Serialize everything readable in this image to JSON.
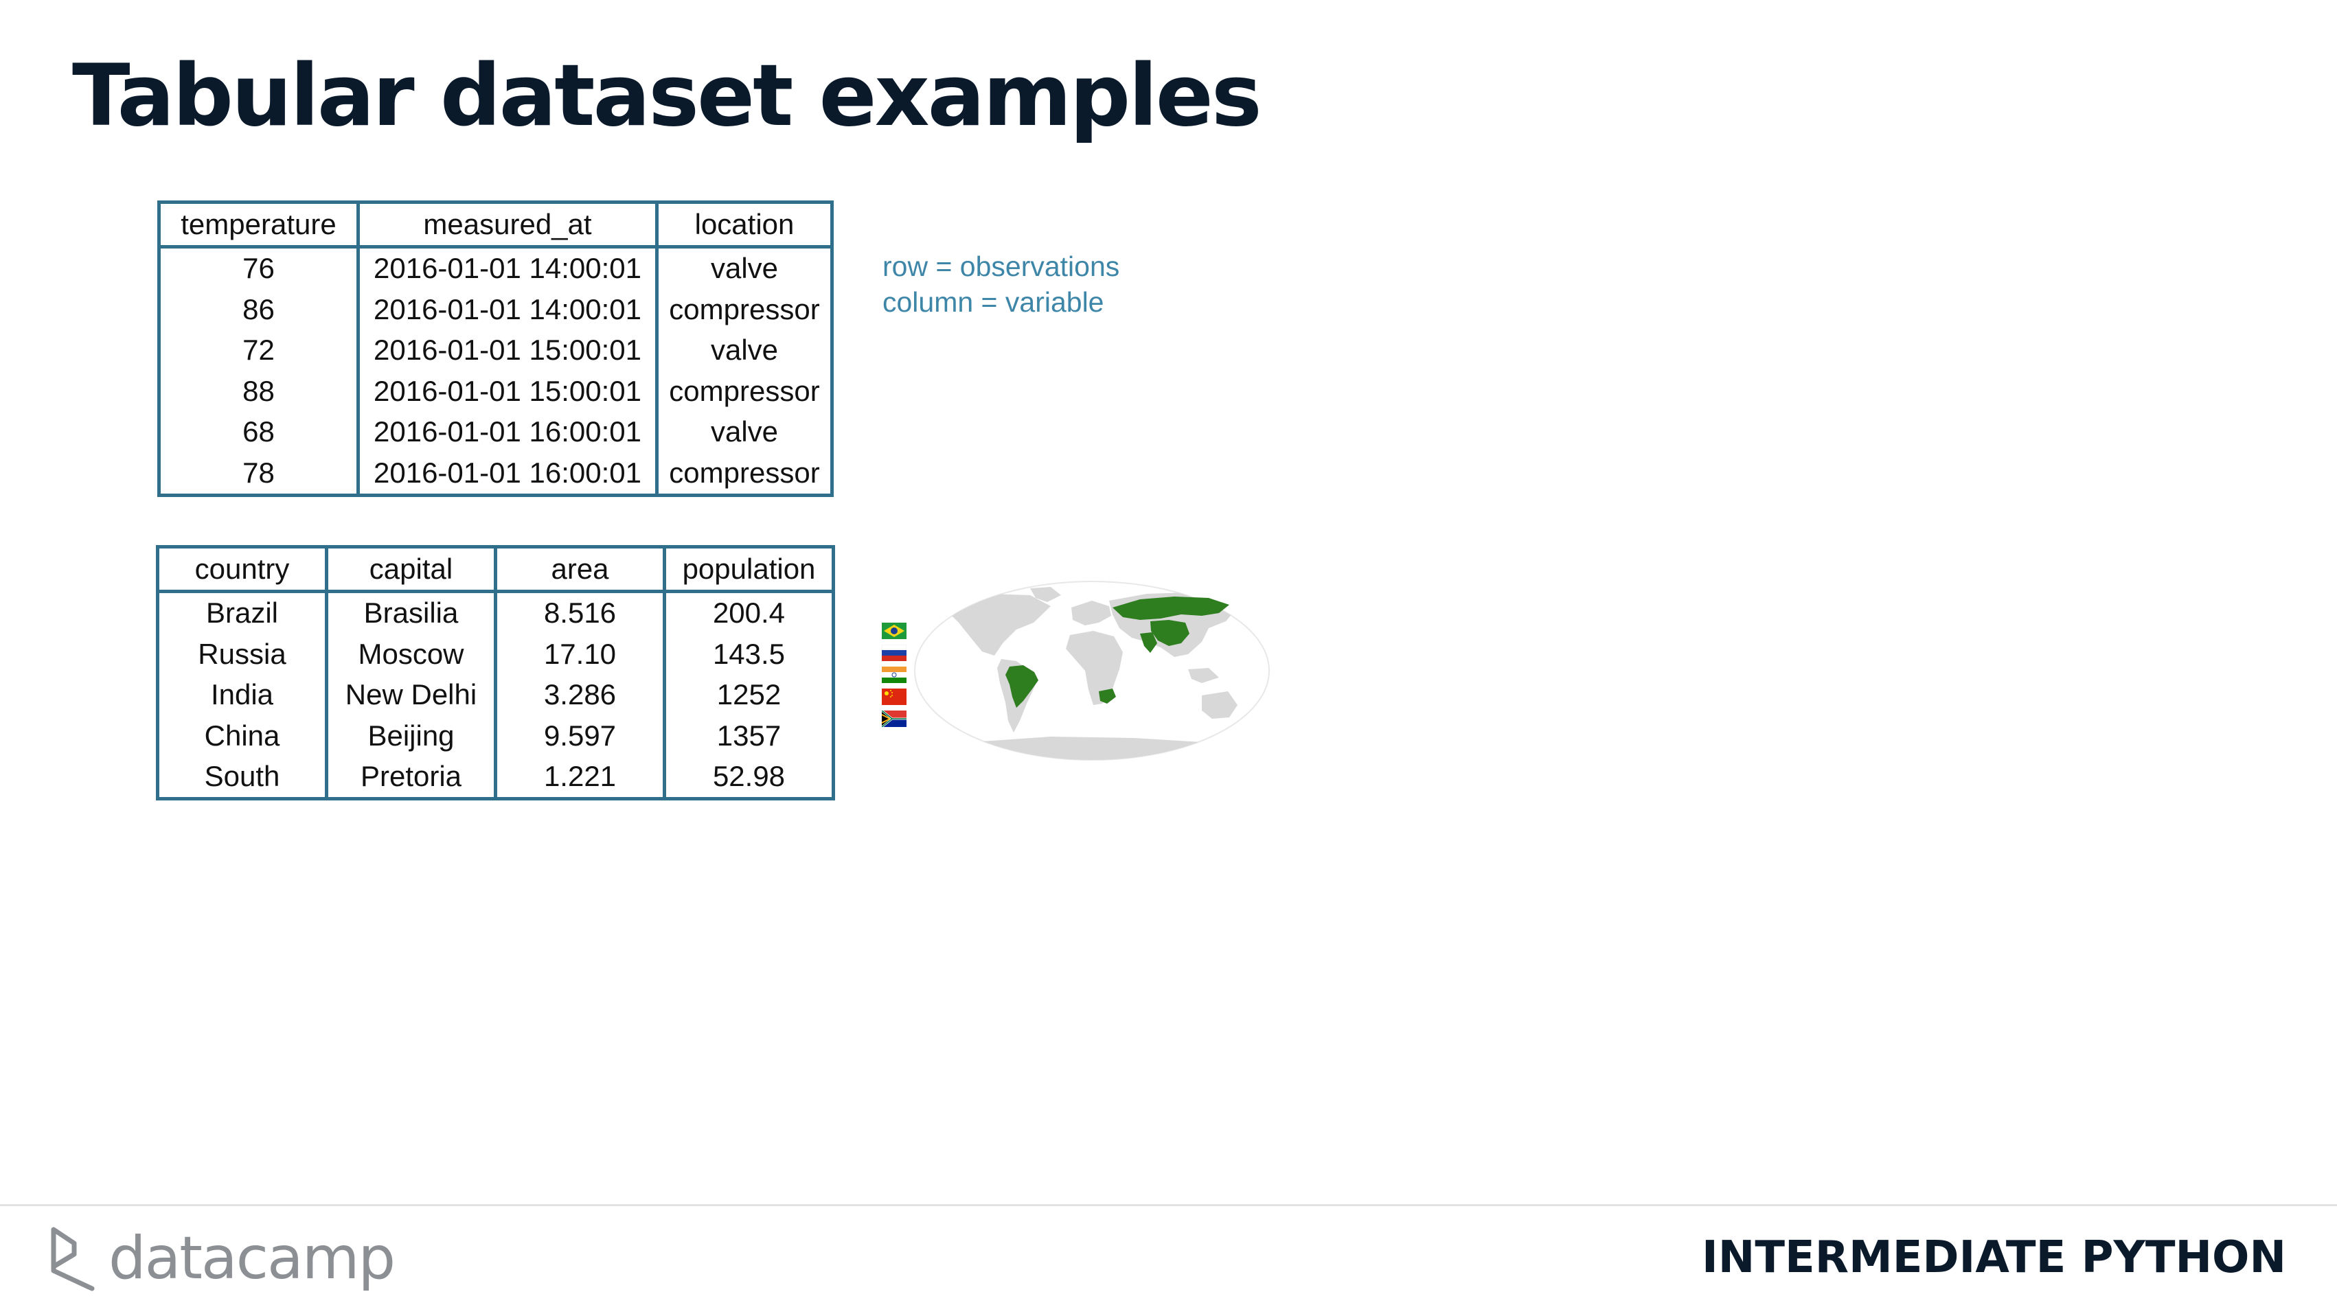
{
  "slide": {
    "title": "Tabular dataset examples",
    "notes": [
      "row = observations",
      "column = variable"
    ]
  },
  "table1": {
    "headers": [
      "temperature",
      "measured_at",
      "location"
    ],
    "rows": [
      [
        "76",
        "2016-01-01 14:00:01",
        "valve"
      ],
      [
        "86",
        "2016-01-01 14:00:01",
        "compressor"
      ],
      [
        "72",
        "2016-01-01 15:00:01",
        "valve"
      ],
      [
        "88",
        "2016-01-01 15:00:01",
        "compressor"
      ],
      [
        "68",
        "2016-01-01 16:00:01",
        "valve"
      ],
      [
        "78",
        "2016-01-01 16:00:01",
        "compressor"
      ]
    ]
  },
  "table2": {
    "headers": [
      "country",
      "capital",
      "area",
      "population"
    ],
    "rows": [
      [
        "Brazil",
        "Brasilia",
        "8.516",
        "200.4"
      ],
      [
        "Russia",
        "Moscow",
        "17.10",
        "143.5"
      ],
      [
        "India",
        "New Delhi",
        "3.286",
        "1252"
      ],
      [
        "China",
        "Beijing",
        "9.597",
        "1357"
      ],
      [
        "South",
        "Pretoria",
        "1.221",
        "52.98"
      ]
    ]
  },
  "flags": [
    "brazil-flag-icon",
    "russia-flag-icon",
    "india-flag-icon",
    "china-flag-icon",
    "south-africa-flag-icon"
  ],
  "map": {
    "icon": "world-map-brics-icon",
    "highlight_color": "#2e7d1f",
    "land_color": "#d8d8d8"
  },
  "footer": {
    "logo_text": "datacamp",
    "course": "INTERMEDIATE PYTHON"
  },
  "colors": {
    "title": "#0b1a2b",
    "table_border": "#2f6f8c",
    "notes": "#3e86a8",
    "logo": "#8c8f93"
  }
}
